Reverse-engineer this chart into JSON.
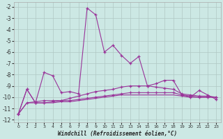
{
  "xlabel": "Windchill (Refroidissement éolien,°C)",
  "background_color": "#cce8e4",
  "grid_color": "#b0c8c4",
  "line_color": "#993399",
  "xlim": [
    -0.5,
    23.5
  ],
  "ylim": [
    -12.2,
    -1.6
  ],
  "xticks": [
    0,
    1,
    2,
    3,
    4,
    5,
    6,
    7,
    8,
    9,
    10,
    11,
    12,
    13,
    14,
    15,
    16,
    17,
    18,
    19,
    20,
    21,
    22,
    23
  ],
  "yticks": [
    -2,
    -3,
    -4,
    -5,
    -6,
    -7,
    -8,
    -9,
    -10,
    -11,
    -12
  ],
  "series": [
    {
      "y": [
        -11.5,
        -9.3,
        -10.5,
        -7.8,
        -8.1,
        -9.6,
        -9.5,
        -9.7,
        -2.1,
        -2.7,
        -6.0,
        -5.4,
        -6.3,
        -7.0,
        -6.4,
        -9.0,
        -8.8,
        -8.5,
        -8.5,
        -9.8,
        -10.0,
        -9.4,
        -9.8,
        -10.2
      ],
      "marker": "+"
    },
    {
      "y": [
        -11.5,
        -9.3,
        -10.5,
        -10.5,
        -10.4,
        -10.3,
        -10.1,
        -9.9,
        -9.7,
        -9.5,
        -9.4,
        -9.3,
        -9.1,
        -9.0,
        -9.0,
        -9.0,
        -9.1,
        -9.2,
        -9.3,
        -9.7,
        -9.8,
        -9.9,
        -9.9,
        -10.0
      ],
      "marker": "+"
    },
    {
      "y": [
        -11.5,
        -10.5,
        -10.4,
        -10.3,
        -10.3,
        -10.3,
        -10.3,
        -10.2,
        -10.1,
        -10.0,
        -9.9,
        -9.8,
        -9.7,
        -9.6,
        -9.6,
        -9.6,
        -9.6,
        -9.6,
        -9.6,
        -9.8,
        -9.9,
        -10.0,
        -10.0,
        -10.0
      ],
      "marker": "+"
    },
    {
      "y": [
        -11.5,
        -10.5,
        -10.5,
        -10.5,
        -10.5,
        -10.4,
        -10.4,
        -10.3,
        -10.2,
        -10.1,
        -10.0,
        -9.9,
        -9.8,
        -9.8,
        -9.8,
        -9.8,
        -9.8,
        -9.8,
        -9.8,
        -9.9,
        -10.0,
        -10.0,
        -10.0,
        -10.0
      ],
      "marker": null
    }
  ]
}
